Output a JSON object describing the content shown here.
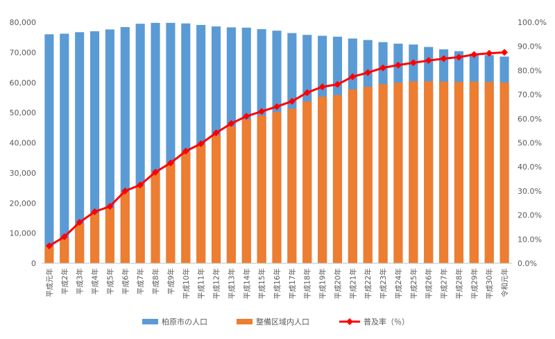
{
  "chart_data": {
    "type": "bar+line",
    "categories": [
      "平成元年",
      "平成2年",
      "平成3年",
      "平成4年",
      "平成5年",
      "平成6年",
      "平成7年",
      "平成8年",
      "平成9年",
      "平成10年",
      "平成11年",
      "平成12年",
      "平成13年",
      "平成14年",
      "平成15年",
      "平成16年",
      "平成17年",
      "平成18年",
      "平成19年",
      "平成20年",
      "平成21年",
      "平成22年",
      "平成23年",
      "平成24年",
      "平成25年",
      "平成26年",
      "平成27年",
      "平成28年",
      "平成29年",
      "平成30年",
      "令和元年"
    ],
    "series": [
      {
        "name": "柏原市の人口",
        "type": "bar",
        "axis": "left",
        "color": "#5b9bd5",
        "values": [
          76000,
          76200,
          76700,
          77000,
          77600,
          78400,
          79500,
          79800,
          79800,
          79600,
          79100,
          78600,
          78300,
          78200,
          77700,
          77200,
          76400,
          75800,
          75500,
          75200,
          74600,
          74100,
          73400,
          72900,
          72600,
          71800,
          71000,
          70400,
          69600,
          69100,
          68600
        ]
      },
      {
        "name": "整備区域内人口",
        "type": "bar",
        "axis": "left",
        "color": "#ed7d31",
        "values": [
          5500,
          8400,
          13000,
          16500,
          18300,
          23500,
          25800,
          30200,
          33200,
          37000,
          39200,
          42500,
          45400,
          47700,
          49000,
          50200,
          51300,
          53700,
          55300,
          55800,
          57700,
          58600,
          59500,
          59900,
          60400,
          60400,
          60300,
          60200,
          60300,
          60200,
          60000
        ]
      },
      {
        "name": "普及率（％）",
        "type": "line",
        "axis": "right",
        "color": "#ff0000",
        "values": [
          7.2,
          11.0,
          17.0,
          21.4,
          23.6,
          30.0,
          32.5,
          37.8,
          41.6,
          46.5,
          49.6,
          54.1,
          58.0,
          61.0,
          63.0,
          65.0,
          67.2,
          70.8,
          73.2,
          74.2,
          77.4,
          79.1,
          81.1,
          82.2,
          83.2,
          84.1,
          84.9,
          85.5,
          86.6,
          87.1,
          87.5
        ]
      }
    ],
    "y_left": {
      "ylim": [
        0,
        80000
      ],
      "ticks": [
        "0",
        "10,000",
        "20,000",
        "30,000",
        "40,000",
        "50,000",
        "60,000",
        "70,000",
        "80,000"
      ]
    },
    "y_right": {
      "ylim": [
        0,
        100
      ],
      "ticks": [
        "0.0%",
        "10.0%",
        "20.0%",
        "30.0%",
        "40.0%",
        "50.0%",
        "60.0%",
        "70.0%",
        "80.0%",
        "90.0%",
        "100.0%"
      ]
    },
    "legend": {
      "position": "bottom",
      "items": [
        "柏原市の人口",
        "整備区域内人口",
        "普及率（％）"
      ]
    },
    "grid": false
  }
}
